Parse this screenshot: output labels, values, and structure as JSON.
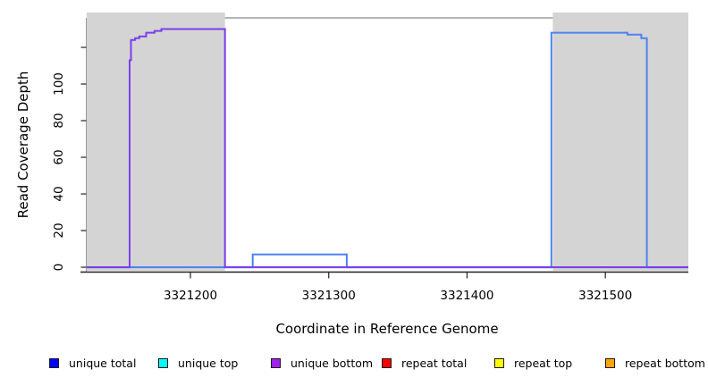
{
  "chart_data": {
    "type": "line",
    "title": "",
    "xlabel": "Coordinate in Reference Genome",
    "ylabel": "Read Coverage Depth",
    "xlim": [
      3321125,
      3321560
    ],
    "ylim": [
      -2.9,
      136.1
    ],
    "grid": false,
    "x_ticks": [
      3321200,
      3321300,
      3321400,
      3321500
    ],
    "x_tick_labels": [
      "3321200",
      "3321300",
      "3321400",
      "3321500"
    ],
    "y_ticks": [
      0,
      20,
      40,
      60,
      80,
      100,
      120
    ],
    "y_tick_labels": [
      "0",
      "20",
      "40",
      "60",
      "80",
      "100",
      ""
    ],
    "shaded_regions": [
      {
        "name": "left-repeat-shading",
        "x0": 3321125,
        "x1": 3321225,
        "color": "#d4d4d4"
      },
      {
        "name": "right-repeat-shading",
        "x0": 3321462,
        "x1": 3321560,
        "color": "#d4d4d4"
      }
    ],
    "baseline_segments": [
      {
        "color": "#6f66f2",
        "x0": 3321125,
        "x1": 3321560,
        "y": 0
      },
      {
        "color": "#83be83",
        "x0": 3321157,
        "x1": 3321225,
        "y": 0
      },
      {
        "color": "#ee7080",
        "x0": 3321245,
        "x1": 3321313,
        "y": 0
      },
      {
        "color": "#ee7080",
        "x0": 3321462,
        "x1": 3321530,
        "y": 0
      }
    ],
    "series": [
      {
        "name": "unique total",
        "color": "#4d82f2",
        "points": [
          [
            3321125,
            0
          ],
          [
            3321245,
            0
          ],
          [
            3321245,
            7
          ],
          [
            3321313,
            7
          ],
          [
            3321313,
            0
          ],
          [
            3321461,
            0
          ],
          [
            3321461,
            128
          ],
          [
            3321516,
            128
          ],
          [
            3321516,
            127
          ],
          [
            3321526,
            127
          ],
          [
            3321526,
            125
          ],
          [
            3321530,
            125
          ],
          [
            3321530,
            0
          ],
          [
            3321560,
            0
          ]
        ]
      },
      {
        "name": "unique bottom",
        "color": "#7b3eeb",
        "points": [
          [
            3321125,
            0
          ],
          [
            3321156,
            0
          ],
          [
            3321156,
            113
          ],
          [
            3321157,
            113
          ],
          [
            3321157,
            124
          ],
          [
            3321160,
            124
          ],
          [
            3321160,
            125
          ],
          [
            3321163,
            125
          ],
          [
            3321163,
            126
          ],
          [
            3321168,
            126
          ],
          [
            3321168,
            128
          ],
          [
            3321174,
            128
          ],
          [
            3321174,
            129
          ],
          [
            3321179,
            129
          ],
          [
            3321179,
            130
          ],
          [
            3321225,
            130
          ],
          [
            3321225,
            0
          ],
          [
            3321560,
            0
          ]
        ]
      }
    ],
    "legend_position": "bottom"
  },
  "legend": {
    "items": [
      {
        "label": "unique total",
        "color": "#0000ff"
      },
      {
        "label": "unique top",
        "color": "#00ffff"
      },
      {
        "label": "unique bottom",
        "color": "#a020f0"
      },
      {
        "label": "repeat total",
        "color": "#ff0000"
      },
      {
        "label": "repeat top",
        "color": "#ffff00"
      },
      {
        "label": "repeat bottom",
        "color": "#ffa500"
      }
    ]
  }
}
